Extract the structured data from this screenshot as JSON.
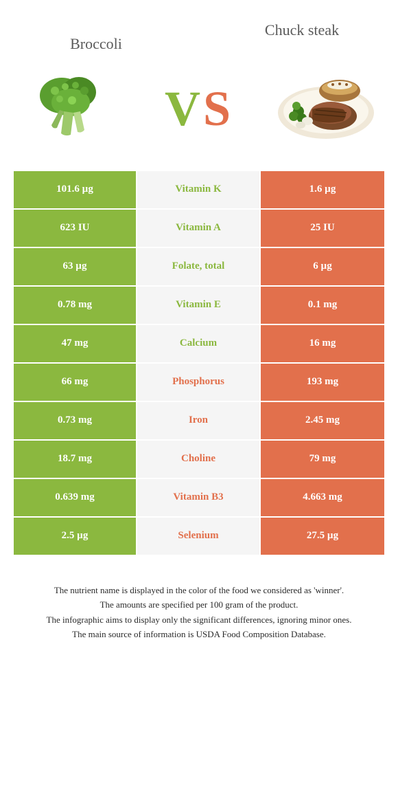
{
  "foods": {
    "left": {
      "name": "Broccoli",
      "color": "#8bb83f"
    },
    "right": {
      "name": "Chuck steak",
      "color": "#e2704c"
    }
  },
  "vs_label": {
    "v": "V",
    "s": "S"
  },
  "colors": {
    "green": "#8bb83f",
    "orange": "#e2704c",
    "mid_bg": "#f5f5f5",
    "text_gray": "#5a5a5a"
  },
  "nutrients": [
    {
      "name": "Vitamin K",
      "left": "101.6 µg",
      "right": "1.6 µg",
      "winner": "green"
    },
    {
      "name": "Vitamin A",
      "left": "623 IU",
      "right": "25 IU",
      "winner": "green"
    },
    {
      "name": "Folate, total",
      "left": "63 µg",
      "right": "6 µg",
      "winner": "green"
    },
    {
      "name": "Vitamin E",
      "left": "0.78 mg",
      "right": "0.1 mg",
      "winner": "green"
    },
    {
      "name": "Calcium",
      "left": "47 mg",
      "right": "16 mg",
      "winner": "green"
    },
    {
      "name": "Phosphorus",
      "left": "66 mg",
      "right": "193 mg",
      "winner": "orange"
    },
    {
      "name": "Iron",
      "left": "0.73 mg",
      "right": "2.45 mg",
      "winner": "orange"
    },
    {
      "name": "Choline",
      "left": "18.7 mg",
      "right": "79 mg",
      "winner": "orange"
    },
    {
      "name": "Vitamin B3",
      "left": "0.639 mg",
      "right": "4.663 mg",
      "winner": "orange"
    },
    {
      "name": "Selenium",
      "left": "2.5 µg",
      "right": "27.5 µg",
      "winner": "orange"
    }
  ],
  "notes": [
    "The nutrient name is displayed in the color of the food we considered as 'winner'.",
    "The amounts are specified per 100 gram of the product.",
    "The infographic aims to display only the significant differences, ignoring minor ones.",
    "The main source of information is USDA Food Composition Database."
  ]
}
